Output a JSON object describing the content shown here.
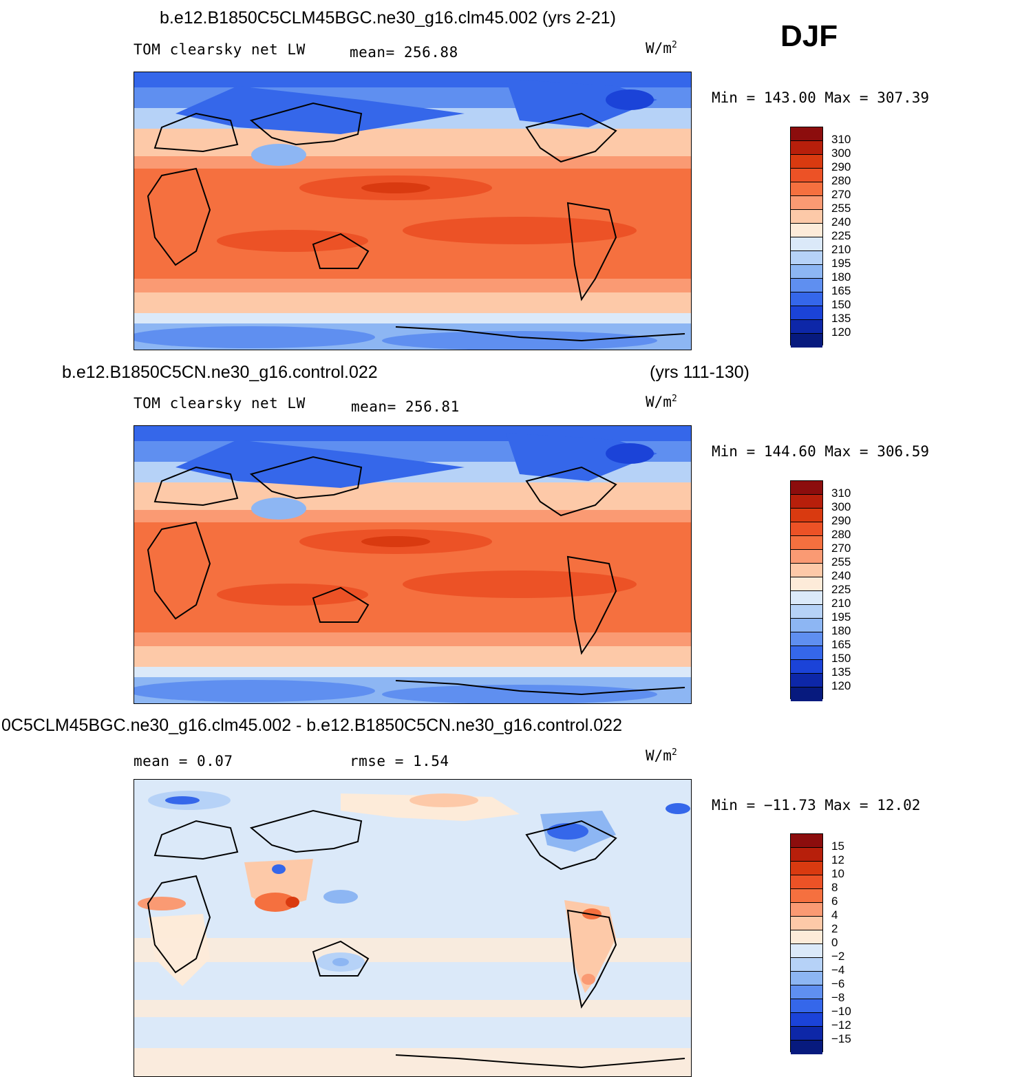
{
  "season": "DJF",
  "panels": [
    {
      "title": "b.e12.B1850C5CLM45BGC.ne30_g16.clm45.002 (yrs 2-21)",
      "title_right": "",
      "variable": "TOM clearsky net LW",
      "stat": "mean= 256.88",
      "stat2": "",
      "units": "W/m",
      "units_exp": "2",
      "minmax": "Min = 143.00 Max = 307.39",
      "levels": [
        "310",
        "300",
        "290",
        "280",
        "270",
        "255",
        "240",
        "225",
        "210",
        "195",
        "180",
        "165",
        "150",
        "135",
        "120"
      ],
      "colors": [
        "#8c0d0d",
        "#b71f0b",
        "#d93a10",
        "#ec5226",
        "#f5703f",
        "#fa9a73",
        "#fdc9a8",
        "#fdebd9",
        "#dbe9f9",
        "#b6d2f7",
        "#8db6f3",
        "#5f8ff0",
        "#3567ea",
        "#1b43d8",
        "#0d27a8",
        "#071a7e"
      ]
    },
    {
      "title": "b.e12.B1850C5CN.ne30_g16.control.022",
      "title_right": "(yrs 111-130)",
      "variable": "TOM clearsky net LW",
      "stat": "mean= 256.81",
      "stat2": "",
      "units": "W/m",
      "units_exp": "2",
      "minmax": "Min = 144.60 Max = 306.59",
      "levels": [
        "310",
        "300",
        "290",
        "280",
        "270",
        "255",
        "240",
        "225",
        "210",
        "195",
        "180",
        "165",
        "150",
        "135",
        "120"
      ],
      "colors": [
        "#8c0d0d",
        "#b71f0b",
        "#d93a10",
        "#ec5226",
        "#f5703f",
        "#fa9a73",
        "#fdc9a8",
        "#fdebd9",
        "#dbe9f9",
        "#b6d2f7",
        "#8db6f3",
        "#5f8ff0",
        "#3567ea",
        "#1b43d8",
        "#0d27a8",
        "#071a7e"
      ]
    },
    {
      "title": "0C5CLM45BGC.ne30_g16.clm45.002 - b.e12.B1850C5CN.ne30_g16.control.022",
      "title_right": "",
      "variable": "",
      "stat": "mean =    0.07",
      "stat2": "rmse =    1.54",
      "units": "W/m",
      "units_exp": "2",
      "minmax": "Min = −11.73 Max =   12.02",
      "levels": [
        "15",
        "12",
        "10",
        "8",
        "6",
        "4",
        "2",
        "0",
        "−2",
        "−4",
        "−6",
        "−8",
        "−10",
        "−12",
        "−15"
      ],
      "colors": [
        "#8c0d0d",
        "#b71f0b",
        "#d93a10",
        "#ec5226",
        "#f5703f",
        "#fa9a73",
        "#fdc9a8",
        "#fdebd9",
        "#dbe9f9",
        "#b6d2f7",
        "#8db6f3",
        "#5f8ff0",
        "#3567ea",
        "#1b43d8",
        "#0d27a8",
        "#071a7e"
      ]
    }
  ]
}
